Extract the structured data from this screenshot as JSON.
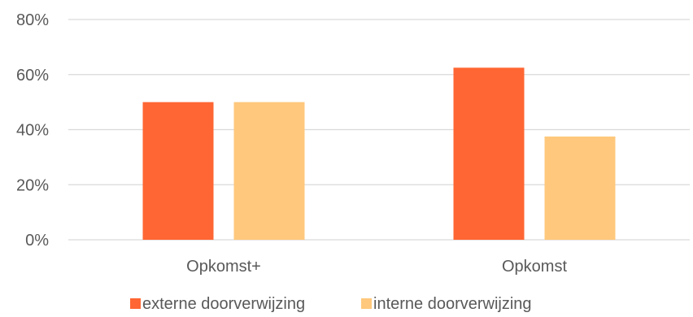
{
  "chart_data": {
    "type": "bar",
    "categories": [
      "Opkomst+",
      "Opkomst"
    ],
    "series": [
      {
        "name": "externe doorverwijzing",
        "values": [
          50,
          62.5
        ],
        "color": "#FF6633"
      },
      {
        "name": "interne doorverwijzing",
        "values": [
          50,
          37.5
        ],
        "color": "#FFC87C"
      }
    ],
    "ylim": [
      0,
      80
    ],
    "yticks": [
      0,
      20,
      40,
      60,
      80
    ],
    "ytick_labels": [
      "0%",
      "20%",
      "40%",
      "60%",
      "80%"
    ],
    "grid": true,
    "legend": "bottom",
    "title": "",
    "xlabel": "",
    "ylabel": ""
  }
}
